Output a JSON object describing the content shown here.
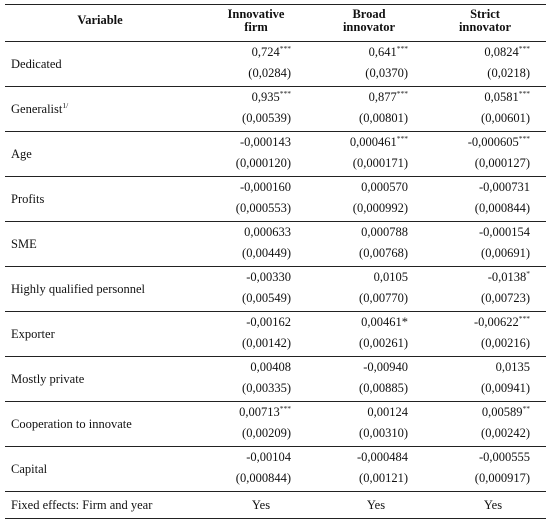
{
  "header": {
    "variable": "Variable",
    "col1": [
      "Innovative",
      "firm"
    ],
    "col2": [
      "Broad",
      "innovator"
    ],
    "col3": [
      "Strict",
      "innovator"
    ]
  },
  "rows": [
    {
      "name": "Dedicated",
      "sup": "",
      "c": [
        [
          "0,724",
          "***"
        ],
        [
          "0,641",
          "***"
        ],
        [
          "0,0824",
          "***"
        ]
      ],
      "se": [
        "(0,0284)",
        "(0,0370)",
        "(0,0218)"
      ]
    },
    {
      "name": "Generalist",
      "sup": "1/",
      "c": [
        [
          "0,935",
          "***"
        ],
        [
          "0,877",
          "***"
        ],
        [
          "0,0581",
          "***"
        ]
      ],
      "se": [
        "(0,00539)",
        "(0,00801)",
        "(0,00601)"
      ]
    },
    {
      "name": "Age",
      "sup": "",
      "c": [
        [
          "-0,000143",
          ""
        ],
        [
          "0,000461",
          "***"
        ],
        [
          "-0,000605",
          "***"
        ]
      ],
      "se": [
        "(0,000120)",
        "(0,000171)",
        "(0,000127)"
      ]
    },
    {
      "name": "Profits",
      "sup": "",
      "c": [
        [
          "-0,000160",
          ""
        ],
        [
          "0,000570",
          ""
        ],
        [
          "-0,000731",
          ""
        ]
      ],
      "se": [
        "(0,000553)",
        "(0,000992)",
        "(0,000844)"
      ]
    },
    {
      "name": "SME",
      "sup": "",
      "c": [
        [
          "0,000633",
          ""
        ],
        [
          "0,000788",
          ""
        ],
        [
          "-0,000154",
          ""
        ]
      ],
      "se": [
        "(0,00449)",
        "(0,00768)",
        "(0,00691)"
      ]
    },
    {
      "name": "Highly qualified personnel",
      "sup": "",
      "c": [
        [
          "-0,00330",
          ""
        ],
        [
          "0,0105",
          ""
        ],
        [
          "-0,0138",
          "*"
        ]
      ],
      "se": [
        "(0,00549)",
        "(0,00770)",
        "(0,00723)"
      ]
    },
    {
      "name": "Exporter",
      "sup": "",
      "c": [
        [
          "-0,00162",
          ""
        ],
        [
          "0,00461*",
          ""
        ],
        [
          "-0,00622",
          "***"
        ]
      ],
      "se": [
        "(0,00142)",
        "(0,00261)",
        "(0,00216)"
      ]
    },
    {
      "name": "Mostly private",
      "sup": "",
      "c": [
        [
          "0,00408",
          ""
        ],
        [
          "-0,00940",
          ""
        ],
        [
          "0,0135",
          ""
        ]
      ],
      "se": [
        "(0,00335)",
        "(0,00885)",
        "(0,00941)"
      ]
    },
    {
      "name": "Cooperation to innovate",
      "sup": "",
      "c": [
        [
          "0,00713",
          "***"
        ],
        [
          "0,00124",
          ""
        ],
        [
          "0,00589",
          "**"
        ]
      ],
      "se": [
        "(0,00209)",
        "(0,00310)",
        "(0,00242)"
      ]
    },
    {
      "name": "Capital",
      "sup": "",
      "c": [
        [
          "-0,00104",
          ""
        ],
        [
          "-0,000484",
          ""
        ],
        [
          "-0,000555",
          ""
        ]
      ],
      "se": [
        "(0,000844)",
        "(0,00121)",
        "(0,000917)"
      ]
    }
  ],
  "fixed_effects": {
    "label": "Fixed effects: Firm and year",
    "values": [
      "Yes",
      "Yes",
      "Yes"
    ]
  }
}
